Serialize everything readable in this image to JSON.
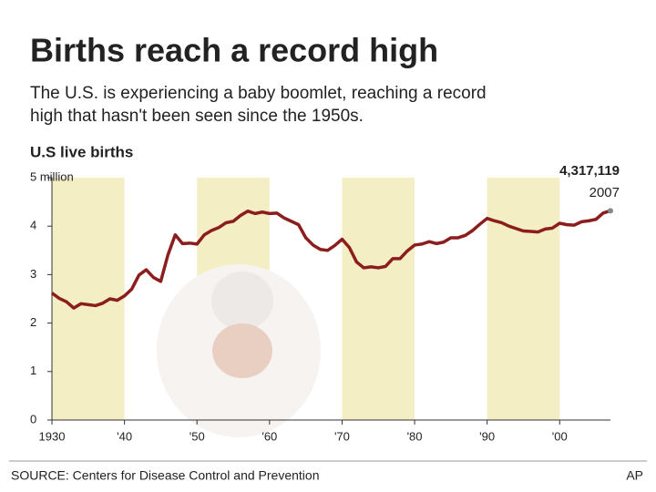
{
  "chart_data": {
    "type": "line",
    "title": "Births reach a record high",
    "subtitle": [
      "The U.S. is experiencing a baby boomlet, reaching a record",
      "high that hasn't been seen since the 1950s."
    ],
    "y_label": "U.S live births",
    "x": [
      1930,
      1931,
      1932,
      1933,
      1934,
      1935,
      1936,
      1937,
      1938,
      1939,
      1940,
      1941,
      1942,
      1943,
      1944,
      1945,
      1946,
      1947,
      1948,
      1949,
      1950,
      1951,
      1952,
      1953,
      1954,
      1955,
      1956,
      1957,
      1958,
      1959,
      1960,
      1961,
      1962,
      1963,
      1964,
      1965,
      1966,
      1967,
      1968,
      1969,
      1970,
      1971,
      1972,
      1973,
      1974,
      1975,
      1976,
      1977,
      1978,
      1979,
      1980,
      1981,
      1982,
      1983,
      1984,
      1985,
      1986,
      1987,
      1988,
      1989,
      1990,
      1991,
      1992,
      1993,
      1994,
      1995,
      1996,
      1997,
      1998,
      1999,
      2000,
      2001,
      2002,
      2003,
      2004,
      2005,
      2006,
      2007
    ],
    "values": [
      2.62,
      2.51,
      2.44,
      2.31,
      2.4,
      2.38,
      2.36,
      2.41,
      2.5,
      2.47,
      2.56,
      2.7,
      2.99,
      3.1,
      2.94,
      2.86,
      3.41,
      3.82,
      3.64,
      3.65,
      3.63,
      3.82,
      3.91,
      3.97,
      4.07,
      4.1,
      4.22,
      4.31,
      4.26,
      4.29,
      4.26,
      4.27,
      4.17,
      4.1,
      4.03,
      3.76,
      3.61,
      3.52,
      3.5,
      3.6,
      3.73,
      3.56,
      3.26,
      3.14,
      3.16,
      3.14,
      3.17,
      3.33,
      3.33,
      3.49,
      3.61,
      3.63,
      3.68,
      3.64,
      3.67,
      3.76,
      3.76,
      3.81,
      3.91,
      4.04,
      4.16,
      4.11,
      4.07,
      4.0,
      3.95,
      3.9,
      3.89,
      3.88,
      3.94,
      3.96,
      4.06,
      4.03,
      4.02,
      4.09,
      4.11,
      4.14,
      4.27,
      4.317119
    ],
    "color": "#8b1d1d",
    "band_color": "#f4eec4",
    "xlim": [
      1930,
      2007
    ],
    "ylim": [
      0,
      5
    ],
    "xticks": [
      1930,
      {
        "value": 1940,
        "label": "'40"
      },
      {
        "value": 1950,
        "label": "'50"
      },
      {
        "value": 1960,
        "label": "'60"
      },
      {
        "value": 1970,
        "label": "'70"
      },
      {
        "value": 1980,
        "label": "'80"
      },
      {
        "value": 1990,
        "label": "'90"
      },
      {
        "value": 2000,
        "label": "'00"
      }
    ],
    "yticks": [
      0,
      1,
      2,
      3,
      4,
      {
        "value": 5,
        "label": "5 million"
      }
    ],
    "grid": false,
    "annotation": "4,317,119",
    "annotation_year": "2007",
    "source": "SOURCE: Centers for Disease Control and Prevention",
    "credit": "AP"
  }
}
